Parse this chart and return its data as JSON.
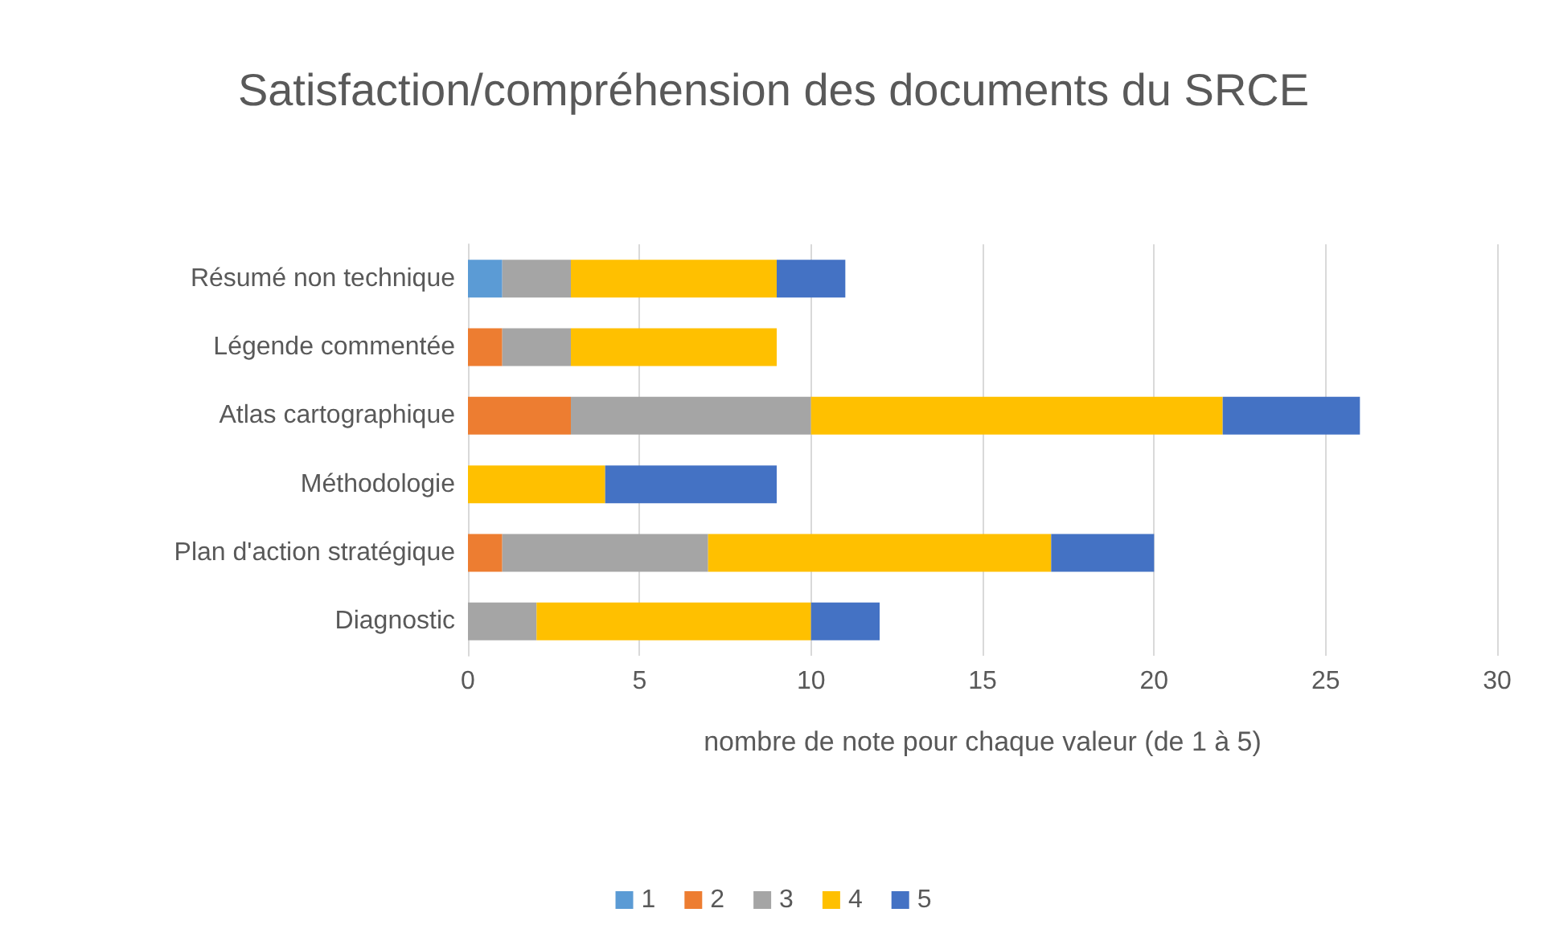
{
  "chart_data": {
    "type": "bar",
    "orientation": "horizontal",
    "stacked": true,
    "title": "Satisfaction/compréhension des documents du SRCE",
    "xlabel": "nombre de note pour chaque valeur (de 1 à 5)",
    "categories": [
      "Résumé non technique",
      "Légende commentée",
      "Atlas cartographique",
      "Méthodologie",
      "Plan d'action stratégique",
      "Diagnostic"
    ],
    "series": [
      {
        "name": "1",
        "color": "#5b9bd5",
        "values": [
          1,
          null,
          null,
          null,
          null,
          null
        ]
      },
      {
        "name": "2",
        "color": "#ed7d31",
        "values": [
          null,
          1,
          3,
          null,
          1,
          null
        ]
      },
      {
        "name": "3",
        "color": "#a5a5a5",
        "values": [
          2,
          2,
          7,
          null,
          6,
          2
        ]
      },
      {
        "name": "4",
        "color": "#ffc000",
        "values": [
          6,
          6,
          12,
          4,
          10,
          8
        ]
      },
      {
        "name": "5",
        "color": "#4472c4",
        "values": [
          2,
          null,
          4,
          5,
          3,
          2
        ]
      }
    ],
    "xlim": [
      0,
      30
    ],
    "xticks": [
      0,
      5,
      10,
      15,
      20,
      25,
      30
    ],
    "grid": "x",
    "legend": "bottom"
  }
}
